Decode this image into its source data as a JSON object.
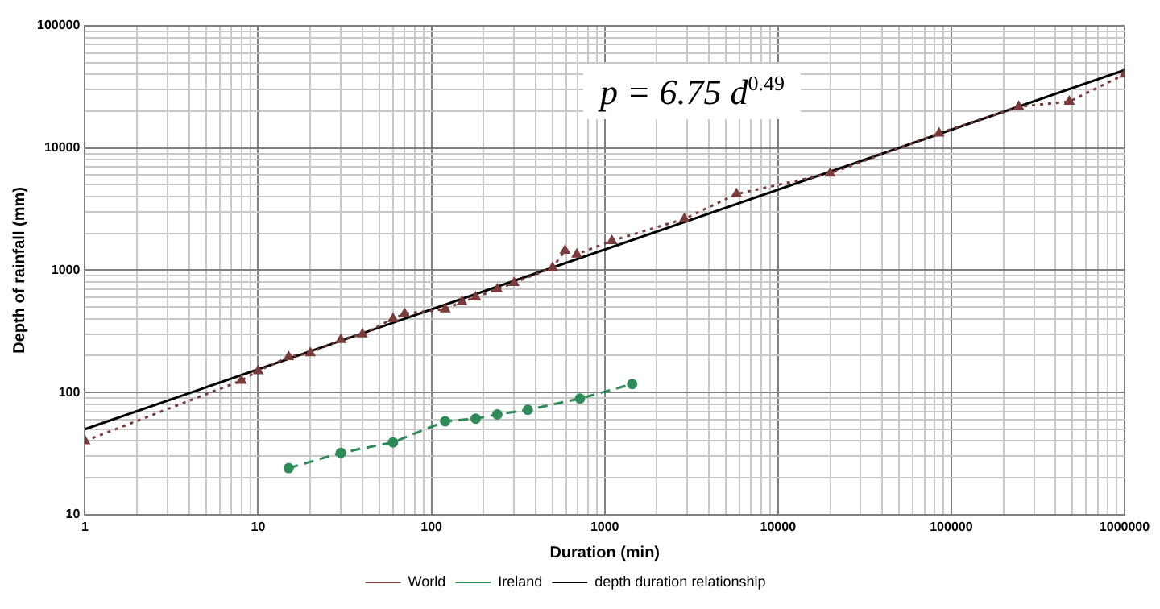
{
  "chart_data": {
    "type": "line",
    "xlabel": "Duration (min)",
    "ylabel": "Depth of rainfall (mm)",
    "log": "xy",
    "grid": true,
    "legend": "bottom",
    "xlim": [
      1,
      1000000
    ],
    "ylim": [
      10,
      100000
    ],
    "xticks": [
      1,
      {
        "value": 2,
        "label": null
      },
      {
        "value": 3,
        "label": null
      },
      {
        "value": 4,
        "label": null
      },
      {
        "value": 5,
        "label": null
      },
      {
        "value": 6,
        "label": null
      },
      {
        "value": 7,
        "label": null
      },
      {
        "value": 8,
        "label": null
      },
      {
        "value": 9,
        "label": null
      },
      10,
      {
        "value": 20,
        "label": null
      },
      {
        "value": 30,
        "label": null
      },
      {
        "value": 40,
        "label": null
      },
      {
        "value": 50,
        "label": null
      },
      {
        "value": 60,
        "label": null
      },
      {
        "value": 70,
        "label": null
      },
      {
        "value": 80,
        "label": null
      },
      {
        "value": 90,
        "label": null
      },
      100,
      {
        "value": 200,
        "label": null
      },
      {
        "value": 300,
        "label": null
      },
      {
        "value": 400,
        "label": null
      },
      {
        "value": 500,
        "label": null
      },
      {
        "value": 600,
        "label": null
      },
      {
        "value": 700,
        "label": null
      },
      {
        "value": 800,
        "label": null
      },
      {
        "value": 900,
        "label": null
      },
      1000,
      {
        "value": 2000,
        "label": null
      },
      {
        "value": 3000,
        "label": null
      },
      {
        "value": 4000,
        "label": null
      },
      {
        "value": 5000,
        "label": null
      },
      {
        "value": 6000,
        "label": null
      },
      {
        "value": 7000,
        "label": null
      },
      {
        "value": 8000,
        "label": null
      },
      {
        "value": 9000,
        "label": null
      },
      10000,
      {
        "value": 20000,
        "label": null
      },
      {
        "value": 30000,
        "label": null
      },
      {
        "value": 40000,
        "label": null
      },
      {
        "value": 50000,
        "label": null
      },
      {
        "value": 60000,
        "label": null
      },
      {
        "value": 70000,
        "label": null
      },
      {
        "value": 80000,
        "label": null
      },
      {
        "value": 90000,
        "label": null
      },
      100000,
      {
        "value": 200000,
        "label": null
      },
      {
        "value": 300000,
        "label": null
      },
      {
        "value": 400000,
        "label": null
      },
      {
        "value": 500000,
        "label": null
      },
      {
        "value": 600000,
        "label": null
      },
      {
        "value": 700000,
        "label": null
      },
      {
        "value": 800000,
        "label": null
      },
      {
        "value": 900000,
        "label": null
      },
      1000000
    ],
    "yticks": [
      10,
      {
        "value": 20,
        "label": null
      },
      {
        "value": 30,
        "label": null
      },
      {
        "value": 40,
        "label": null
      },
      {
        "value": 50,
        "label": null
      },
      {
        "value": 60,
        "label": null
      },
      {
        "value": 70,
        "label": null
      },
      {
        "value": 80,
        "label": null
      },
      {
        "value": 90,
        "label": null
      },
      100,
      {
        "value": 200,
        "label": null
      },
      {
        "value": 300,
        "label": null
      },
      {
        "value": 400,
        "label": null
      },
      {
        "value": 500,
        "label": null
      },
      {
        "value": 600,
        "label": null
      },
      {
        "value": 700,
        "label": null
      },
      {
        "value": 800,
        "label": null
      },
      {
        "value": 900,
        "label": null
      },
      1000,
      {
        "value": 2000,
        "label": null
      },
      {
        "value": 3000,
        "label": null
      },
      {
        "value": 4000,
        "label": null
      },
      {
        "value": 5000,
        "label": null
      },
      {
        "value": 6000,
        "label": null
      },
      {
        "value": 7000,
        "label": null
      },
      {
        "value": 8000,
        "label": null
      },
      {
        "value": 9000,
        "label": null
      },
      10000,
      {
        "value": 20000,
        "label": null
      },
      {
        "value": 30000,
        "label": null
      },
      {
        "value": 40000,
        "label": null
      },
      {
        "value": 50000,
        "label": null
      },
      {
        "value": 60000,
        "label": null
      },
      {
        "value": 70000,
        "label": null
      },
      {
        "value": 80000,
        "label": null
      },
      {
        "value": 90000,
        "label": null
      },
      100000
    ],
    "annotations": [
      "p = 6.75 d$^{0.49}$"
    ],
    "series": [
      {
        "name": "World",
        "color": "#7a3b3b",
        "line_style": "dotted",
        "marker": "triangle",
        "x": [
          1,
          8,
          10,
          15,
          20,
          30,
          40,
          60,
          70,
          120,
          150,
          180,
          240,
          300,
          500,
          590,
          690,
          1100,
          2880,
          5760,
          20000,
          85000,
          245000,
          480000,
          1000000
        ],
        "values": [
          40,
          125,
          150,
          195,
          210,
          270,
          300,
          400,
          440,
          480,
          550,
          600,
          700,
          790,
          1050,
          1450,
          1350,
          1740,
          2630,
          4200,
          6200,
          13200,
          21800,
          24000,
          40000
        ]
      },
      {
        "name": "Ireland",
        "color": "#2e8b57",
        "line_style": "dashed",
        "marker": "circle",
        "x": [
          15,
          30,
          60,
          120,
          180,
          240,
          360,
          720,
          1440
        ],
        "values": [
          24,
          32,
          39,
          58,
          61,
          66,
          72,
          89,
          117
        ]
      },
      {
        "name": "depth duration relationship",
        "color": "#000000",
        "line_style": "solid",
        "marker": "none",
        "x": [
          1,
          1000000
        ],
        "values": [
          50,
          43500
        ]
      }
    ]
  }
}
